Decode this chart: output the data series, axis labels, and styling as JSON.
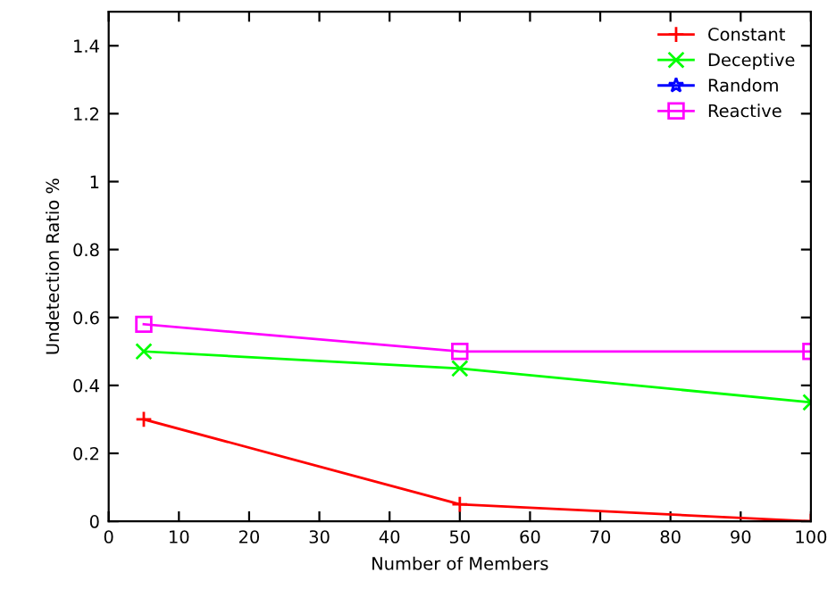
{
  "chart_data": {
    "type": "line",
    "xlabel": "Number of Members",
    "ylabel": "Undetection Ratio %",
    "x": [
      5,
      50,
      100
    ],
    "series": [
      {
        "name": "Constant",
        "color": "#ff0000",
        "marker": "plus",
        "values": [
          0.3,
          0.05,
          0
        ]
      },
      {
        "name": "Deceptive",
        "color": "#00ff00",
        "marker": "x",
        "values": [
          0.5,
          0.45,
          0.35
        ]
      },
      {
        "name": "Random",
        "color": "#0000ff",
        "marker": "star",
        "values": [
          null,
          null,
          null
        ]
      },
      {
        "name": "Reactive",
        "color": "#ff00ff",
        "marker": "square",
        "values": [
          0.58,
          0.5,
          0.5
        ]
      }
    ],
    "xlim": [
      0,
      100
    ],
    "xticks": [
      0,
      10,
      20,
      30,
      40,
      50,
      60,
      70,
      80,
      90,
      100
    ],
    "ylim": [
      0,
      1.5
    ],
    "yticks": [
      0,
      0.2,
      0.4,
      0.6,
      0.8,
      1,
      1.2,
      1.4
    ],
    "grid": false,
    "legend": "top right",
    "line_style": "solid"
  }
}
